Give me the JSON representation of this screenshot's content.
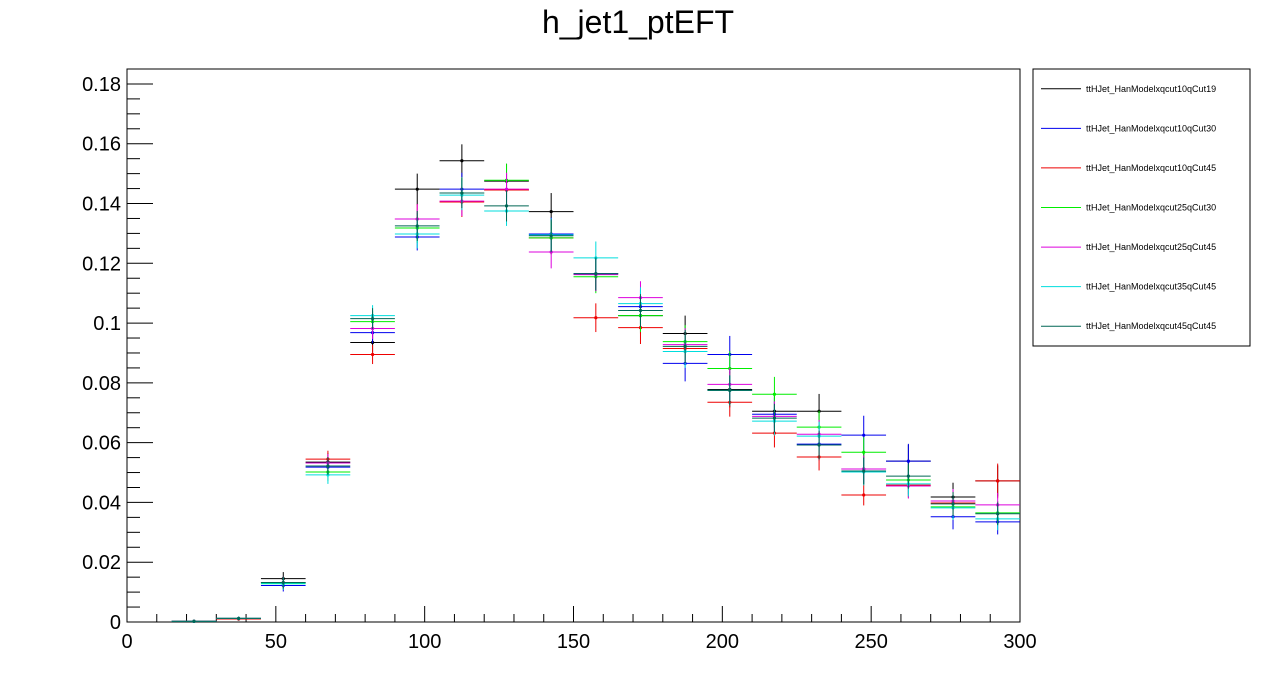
{
  "chart_data": {
    "type": "scatter",
    "title": "h_jet1_ptEFT",
    "xlabel": "",
    "ylabel": "",
    "xlim": [
      0,
      300
    ],
    "ylim": [
      0,
      0.185
    ],
    "grid": false,
    "legend_position": "right",
    "x_ticks": [
      "0",
      "50",
      "100",
      "150",
      "200",
      "250",
      "300"
    ],
    "y_ticks": [
      "0",
      "0.02",
      "0.04",
      "0.06",
      "0.08",
      "0.1",
      "0.12",
      "0.14",
      "0.16",
      "0.18"
    ],
    "bin_width": 15,
    "x": [
      22.5,
      37.5,
      52.5,
      67.5,
      82.5,
      97.5,
      112.5,
      127.5,
      142.5,
      157.5,
      172.5,
      187.5,
      202.5,
      217.5,
      232.5,
      247.5,
      262.5,
      277.5,
      292.5
    ],
    "series": [
      {
        "name": "ttHJet_HanModelxqcut10qCut19",
        "color": "#000000",
        "values": [
          0.0003,
          0.0012,
          0.0145,
          0.0535,
          0.0935,
          0.1448,
          0.1543,
          0.1475,
          0.1373,
          0.1165,
          0.1025,
          0.0965,
          0.0778,
          0.0705,
          0.0705,
          0.0512,
          0.0538,
          0.0418,
          0.0472
        ],
        "errors": [
          0.0002,
          0.0006,
          0.0022,
          0.003,
          0.0033,
          0.0052,
          0.0055,
          0.0058,
          0.0062,
          0.0058,
          0.006,
          0.006,
          0.006,
          0.0055,
          0.0058,
          0.005,
          0.0055,
          0.0048,
          0.0052
        ]
      },
      {
        "name": "ttHJet_HanModelxqcut10qCut30",
        "color": "#0000ee",
        "values": [
          0.0002,
          0.0011,
          0.0122,
          0.0518,
          0.0968,
          0.1288,
          0.1448,
          0.1445,
          0.1298,
          0.1165,
          0.1055,
          0.0865,
          0.0895,
          0.0695,
          0.0595,
          0.0625,
          0.0538,
          0.0352,
          0.0335
        ],
        "errors": [
          0.0002,
          0.0006,
          0.002,
          0.003,
          0.0035,
          0.0045,
          0.0055,
          0.0055,
          0.0055,
          0.0058,
          0.0058,
          0.006,
          0.0062,
          0.0055,
          0.0055,
          0.0065,
          0.0058,
          0.0042,
          0.0042
        ]
      },
      {
        "name": "ttHJet_HanModelxqcut10qCut45",
        "color": "#ee0000",
        "values": [
          0.0002,
          0.001,
          0.0132,
          0.0545,
          0.0895,
          0.1348,
          0.1405,
          0.1445,
          0.1285,
          0.1018,
          0.0985,
          0.0915,
          0.0735,
          0.0632,
          0.0552,
          0.0425,
          0.0458,
          0.0398,
          0.0472
        ],
        "errors": [
          0.0002,
          0.0006,
          0.002,
          0.0028,
          0.0032,
          0.005,
          0.005,
          0.0055,
          0.0055,
          0.0048,
          0.0055,
          0.005,
          0.0048,
          0.0048,
          0.0045,
          0.0035,
          0.0042,
          0.004,
          0.0058
        ]
      },
      {
        "name": "ttHJet_HanModelxqcut25qCut30",
        "color": "#00ee00",
        "values": [
          0.0002,
          0.0012,
          0.013,
          0.0502,
          0.1005,
          0.1318,
          0.1435,
          0.1478,
          0.1285,
          0.1155,
          0.1025,
          0.0938,
          0.0848,
          0.0762,
          0.0652,
          0.0568,
          0.0475,
          0.0385,
          0.0365
        ],
        "errors": [
          0.0002,
          0.0006,
          0.002,
          0.003,
          0.0035,
          0.005,
          0.0052,
          0.0055,
          0.0055,
          0.0055,
          0.0055,
          0.0055,
          0.0058,
          0.0058,
          0.0055,
          0.005,
          0.0048,
          0.0042,
          0.004
        ]
      },
      {
        "name": "ttHJet_HanModelxqcut25qCut45",
        "color": "#dd00dd",
        "values": [
          0.0002,
          0.0012,
          0.0132,
          0.0532,
          0.0982,
          0.1348,
          0.1408,
          0.1448,
          0.1238,
          0.1162,
          0.1085,
          0.0928,
          0.0795,
          0.0688,
          0.0628,
          0.0512,
          0.0455,
          0.0405,
          0.0392
        ],
        "errors": [
          0.0002,
          0.0006,
          0.002,
          0.003,
          0.0035,
          0.005,
          0.005,
          0.0055,
          0.0055,
          0.0055,
          0.0055,
          0.0055,
          0.0055,
          0.005,
          0.0048,
          0.0045,
          0.0042,
          0.004,
          0.004
        ]
      },
      {
        "name": "ttHJet_HanModelxqcut35qCut45",
        "color": "#00dddd",
        "values": [
          0.0002,
          0.0012,
          0.0128,
          0.0492,
          0.1025,
          0.1298,
          0.1428,
          0.1375,
          0.1295,
          0.1218,
          0.1065,
          0.0905,
          0.0775,
          0.0672,
          0.0622,
          0.0502,
          0.0462,
          0.0382,
          0.0345
        ],
        "errors": [
          0.0002,
          0.0006,
          0.002,
          0.003,
          0.0035,
          0.0048,
          0.005,
          0.005,
          0.0055,
          0.0055,
          0.0055,
          0.0055,
          0.005,
          0.0048,
          0.0048,
          0.0045,
          0.0042,
          0.004,
          0.0038
        ]
      },
      {
        "name": "ttHJet_HanModelxqcut45qCut45",
        "color": "#006655",
        "values": [
          0.0002,
          0.0012,
          0.0132,
          0.0522,
          0.1015,
          0.1325,
          0.1435,
          0.1392,
          0.1292,
          0.1165,
          0.1042,
          0.0922,
          0.0775,
          0.0682,
          0.0592,
          0.0505,
          0.0488,
          0.0395,
          0.0362
        ],
        "errors": [
          0.0002,
          0.0006,
          0.002,
          0.003,
          0.0035,
          0.005,
          0.005,
          0.0052,
          0.0055,
          0.0055,
          0.0055,
          0.0055,
          0.005,
          0.0048,
          0.0048,
          0.0045,
          0.0042,
          0.004,
          0.0038
        ]
      }
    ]
  }
}
